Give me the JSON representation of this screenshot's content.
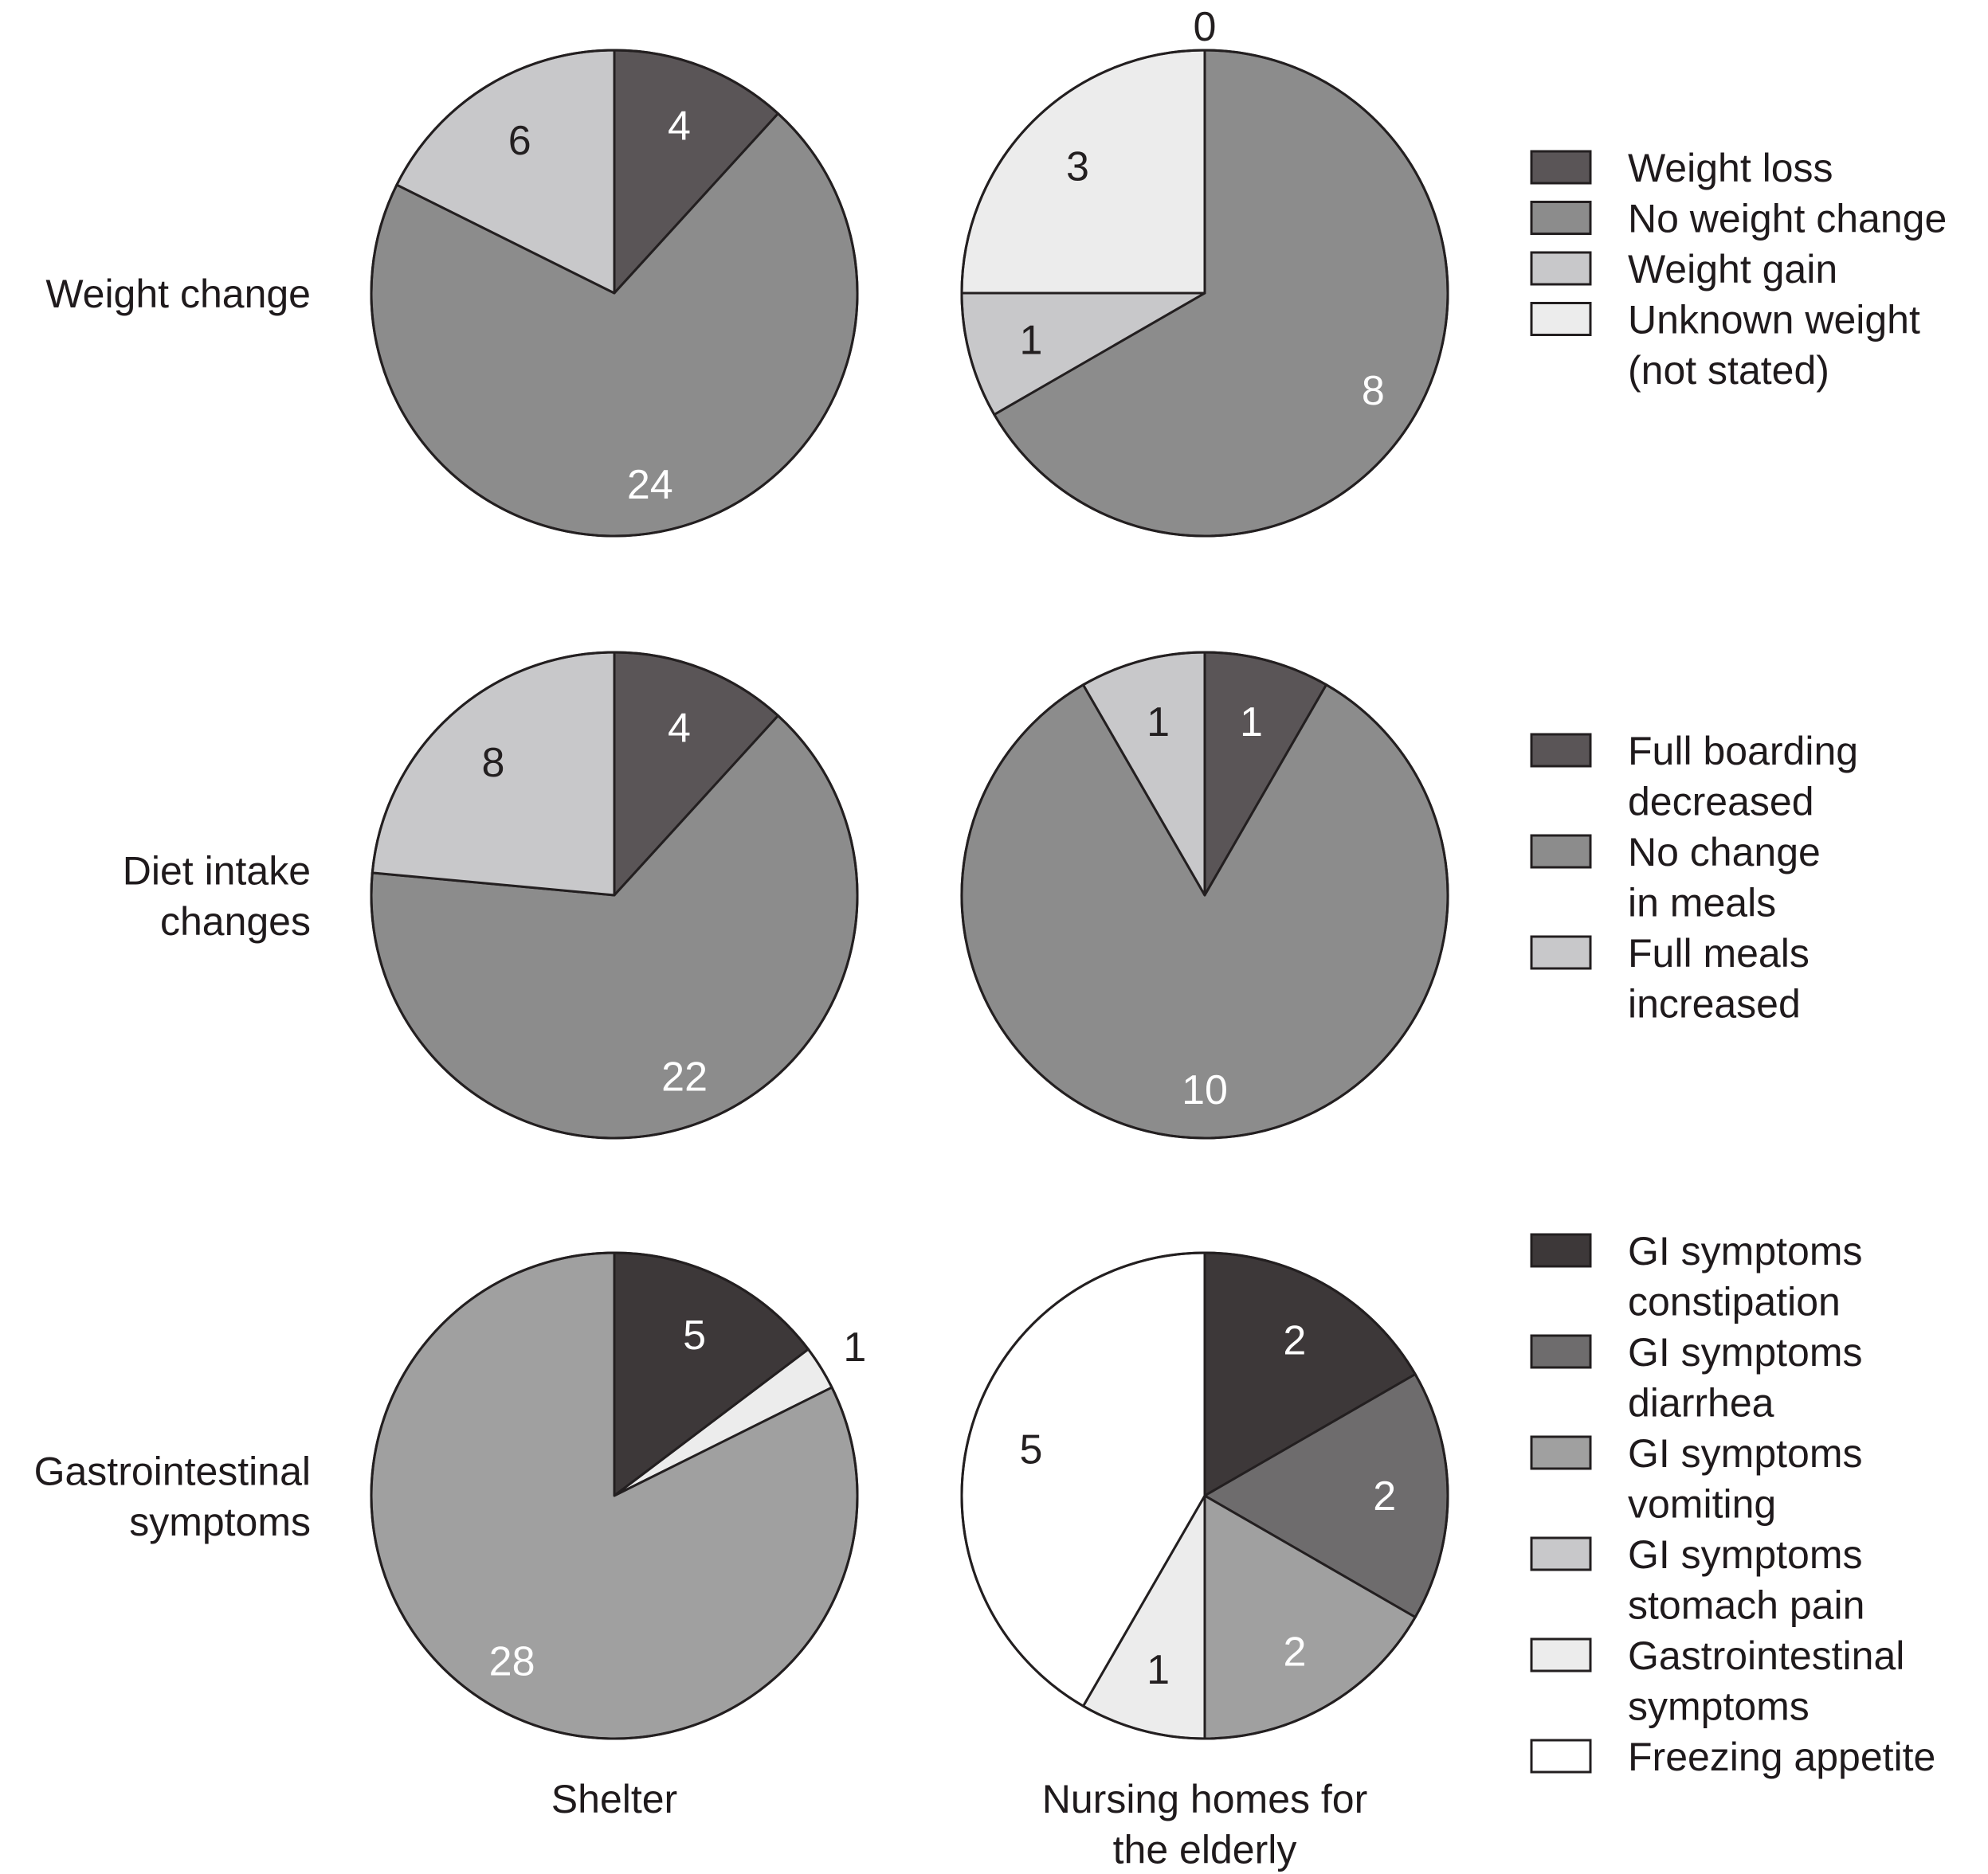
{
  "chart_data": {
    "type": "pie",
    "columns": [
      "Shelter",
      "Nursing homes for the elderly"
    ],
    "rows": [
      {
        "label": [
          "Weight change"
        ],
        "legend": [
          {
            "lines": [
              "Weight loss"
            ],
            "color": "#5a5557"
          },
          {
            "lines": [
              "No weight change"
            ],
            "color": "#8c8c8c"
          },
          {
            "lines": [
              "Weight gain"
            ],
            "color": "#c8c8ca"
          },
          {
            "lines": [
              "Unknown weight",
              "(not stated)"
            ],
            "color": "#ececec"
          }
        ],
        "pies": [
          {
            "column": "Shelter",
            "slices": [
              {
                "category": "Weight loss",
                "value": 4,
                "label": "4",
                "color": "#5a5557",
                "text_color": "#ffffff"
              },
              {
                "category": "No weight change",
                "value": 24,
                "label": "24",
                "color": "#8c8c8c",
                "text_color": "#ffffff"
              },
              {
                "category": "Weight gain",
                "value": 6,
                "label": "6",
                "color": "#c8c8ca",
                "text_color": "#231f20"
              }
            ]
          },
          {
            "column": "Nursing homes for the elderly",
            "slices": [
              {
                "category": "Weight loss",
                "value": 0,
                "label": "0",
                "color": "#5a5557",
                "text_color": "#231f20"
              },
              {
                "category": "No weight change",
                "value": 8,
                "label": "8",
                "color": "#8c8c8c",
                "text_color": "#ffffff"
              },
              {
                "category": "Weight gain",
                "value": 1,
                "label": "1",
                "color": "#c8c8ca",
                "text_color": "#231f20"
              },
              {
                "category": "Unknown weight (not stated)",
                "value": 3,
                "label": "3",
                "color": "#ececec",
                "text_color": "#231f20"
              }
            ]
          }
        ]
      },
      {
        "label": [
          "Diet intake",
          "changes"
        ],
        "legend": [
          {
            "lines": [
              "Full boarding",
              "decreased"
            ],
            "color": "#5a5557"
          },
          {
            "lines": [
              "No change",
              "in meals"
            ],
            "color": "#8c8c8c"
          },
          {
            "lines": [
              "Full meals",
              "increased"
            ],
            "color": "#c8c8ca"
          }
        ],
        "pies": [
          {
            "column": "Shelter",
            "slices": [
              {
                "category": "Full boarding decreased",
                "value": 4,
                "label": "4",
                "color": "#5a5557",
                "text_color": "#ffffff"
              },
              {
                "category": "No change in meals",
                "value": 22,
                "label": "22",
                "color": "#8c8c8c",
                "text_color": "#ffffff"
              },
              {
                "category": "Full meals increased",
                "value": 8,
                "label": "8",
                "color": "#c8c8ca",
                "text_color": "#231f20"
              }
            ]
          },
          {
            "column": "Nursing homes for the elderly",
            "slices": [
              {
                "category": "Full boarding decreased",
                "value": 1,
                "label": "1",
                "color": "#5a5557",
                "text_color": "#ffffff"
              },
              {
                "category": "No change in meals",
                "value": 10,
                "label": "10",
                "color": "#8c8c8c",
                "text_color": "#ffffff"
              },
              {
                "category": "Full meals increased",
                "value": 1,
                "label": "1",
                "color": "#c8c8ca",
                "text_color": "#231f20"
              }
            ]
          }
        ]
      },
      {
        "label": [
          "Gastrointestinal",
          "symptoms"
        ],
        "legend": [
          {
            "lines": [
              "GI symptoms",
              "constipation"
            ],
            "color": "#3d3839"
          },
          {
            "lines": [
              "GI symptoms",
              "diarrhea"
            ],
            "color": "#6e6c6d"
          },
          {
            "lines": [
              "GI symptoms",
              "vomiting"
            ],
            "color": "#a0a0a0"
          },
          {
            "lines": [
              "GI symptoms",
              "stomach pain"
            ],
            "color": "#c8c8ca"
          },
          {
            "lines": [
              "Gastrointestinal",
              "symptoms"
            ],
            "color": "#ececec"
          },
          {
            "lines": [
              "Freezing appetite"
            ],
            "color": "#ffffff"
          }
        ],
        "pies": [
          {
            "column": "Shelter",
            "slices": [
              {
                "category": "GI symptoms constipation",
                "value": 5,
                "label": "5",
                "color": "#3d3839",
                "text_color": "#ffffff"
              },
              {
                "category": "Gastrointestinal symptoms",
                "value": 1,
                "label": "1",
                "color": "#ececec",
                "text_color": "#231f20"
              },
              {
                "category": "GI symptoms vomiting",
                "value": 28,
                "label": "28",
                "color": "#a0a0a0",
                "text_color": "#ffffff"
              }
            ]
          },
          {
            "column": "Nursing homes for the elderly",
            "slices": [
              {
                "category": "GI symptoms constipation",
                "value": 2,
                "label": "2",
                "color": "#3d3839",
                "text_color": "#ffffff"
              },
              {
                "category": "GI symptoms diarrhea",
                "value": 2,
                "label": "2",
                "color": "#6e6c6d",
                "text_color": "#ffffff"
              },
              {
                "category": "GI symptoms vomiting",
                "value": 2,
                "label": "2",
                "color": "#a0a0a0",
                "text_color": "#ffffff"
              },
              {
                "category": "Gastrointestinal symptoms",
                "value": 1,
                "label": "1",
                "color": "#ececec",
                "text_color": "#231f20"
              },
              {
                "category": "Freezing appetite",
                "value": 5,
                "label": "5",
                "color": "#ffffff",
                "text_color": "#231f20"
              }
            ]
          }
        ]
      }
    ]
  }
}
